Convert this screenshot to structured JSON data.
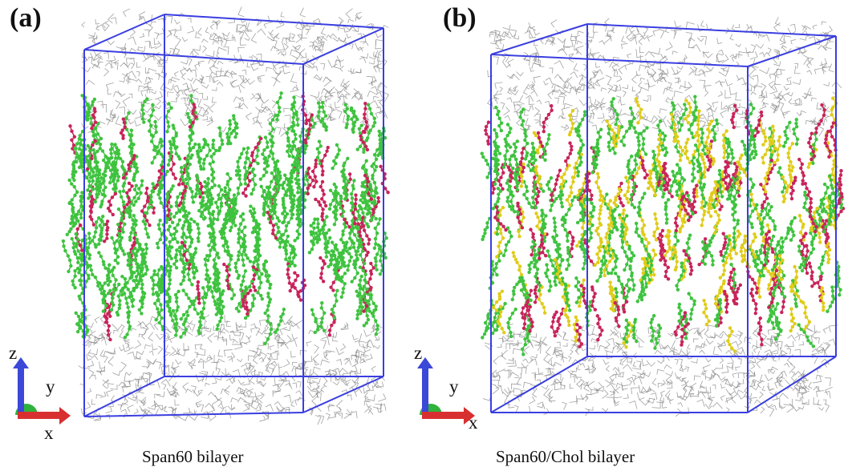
{
  "panels": [
    {
      "label": "(a)",
      "caption": "Span60 bilayer",
      "components": [
        "span60"
      ]
    },
    {
      "label": "(b)",
      "caption": "Span60/Chol bilayer",
      "components": [
        "span60",
        "cholesterol"
      ]
    }
  ],
  "axes_legend": {
    "z": "z",
    "y": "y",
    "x": "x"
  },
  "colors": {
    "box_edge": "#3a3ee0",
    "water": "#8a8a8a",
    "span60_tail": "#3fc33f",
    "span60_head": "#c8245a",
    "cholesterol": "#e0cc1a",
    "axis_z": "#3b48d8",
    "axis_x": "#d83030",
    "axis_y": "#2fb33c"
  }
}
